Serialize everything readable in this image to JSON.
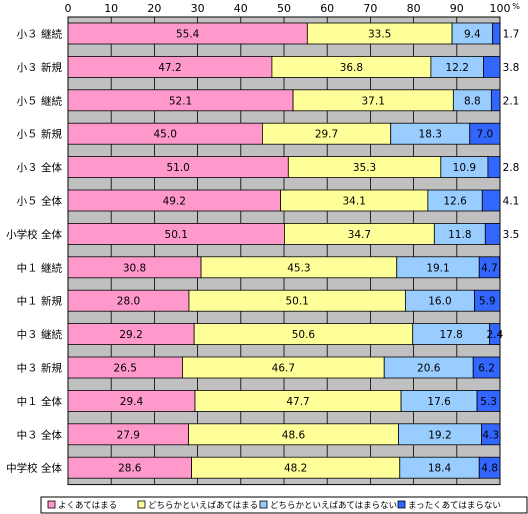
{
  "chart_data": {
    "type": "bar",
    "orientation": "horizontal",
    "stacked": true,
    "xlim": [
      0,
      100
    ],
    "x_ticks": [
      "0",
      "10",
      "20",
      "30",
      "40",
      "50",
      "60",
      "70",
      "80",
      "90",
      "100"
    ],
    "unit": "%",
    "grid": true,
    "legend_position": "bottom",
    "categories": [
      "小３ 継続",
      "小３ 新規",
      "小５ 継続",
      "小５ 新規",
      "小３ 全体",
      "小５ 全体",
      "小学校 全体",
      "中１ 継続",
      "中１ 新規",
      "中３ 継続",
      "中３ 新規",
      "中１ 全体",
      "中３ 全体",
      "中学校 全体"
    ],
    "series": [
      {
        "name": "よくあてはまる",
        "color": "#ff99cc",
        "values": [
          55.4,
          47.2,
          52.1,
          45.0,
          51.0,
          49.2,
          50.1,
          30.8,
          28.0,
          29.2,
          26.5,
          29.4,
          27.9,
          28.6
        ]
      },
      {
        "name": "どちらかといえばあてはまる",
        "color": "#ffff99",
        "values": [
          33.5,
          36.8,
          37.1,
          29.7,
          35.3,
          34.1,
          34.7,
          45.3,
          50.1,
          50.6,
          46.7,
          47.7,
          48.6,
          48.2
        ]
      },
      {
        "name": "どちらかといえばあてはまらない",
        "color": "#99ccff",
        "values": [
          9.4,
          12.2,
          8.8,
          18.3,
          10.9,
          12.6,
          11.8,
          19.1,
          16.0,
          17.8,
          20.6,
          17.6,
          19.2,
          18.4
        ]
      },
      {
        "name": "まったくあてはまらない",
        "color": "#3366ff",
        "values": [
          1.7,
          3.8,
          2.1,
          7.0,
          2.8,
          4.1,
          3.5,
          4.7,
          5.9,
          2.4,
          6.2,
          5.3,
          4.3,
          4.8
        ]
      }
    ],
    "value_labels": [
      [
        "55.4",
        "33.5",
        "9.4",
        "1.7"
      ],
      [
        "47.2",
        "36.8",
        "12.2",
        "3.8"
      ],
      [
        "52.1",
        "37.1",
        "8.8",
        "2.1"
      ],
      [
        "45.0",
        "29.7",
        "18.3",
        "7.0"
      ],
      [
        "51.0",
        "35.3",
        "10.9",
        "2.8"
      ],
      [
        "49.2",
        "34.1",
        "12.6",
        "4.1"
      ],
      [
        "50.1",
        "34.7",
        "11.8",
        "3.5"
      ],
      [
        "30.8",
        "45.3",
        "19.1",
        "4.7"
      ],
      [
        "28.0",
        "50.1",
        "16.0",
        "5.9"
      ],
      [
        "29.2",
        "50.6",
        "17.8",
        "2.4"
      ],
      [
        "26.5",
        "46.7",
        "20.6",
        "6.2"
      ],
      [
        "29.4",
        "47.7",
        "17.6",
        "5.3"
      ],
      [
        "27.9",
        "48.6",
        "19.2",
        "4.3"
      ],
      [
        "28.6",
        "48.2",
        "18.4",
        "4.8"
      ]
    ],
    "outside_label_rows": [
      0,
      1,
      2,
      4,
      5,
      6
    ]
  }
}
